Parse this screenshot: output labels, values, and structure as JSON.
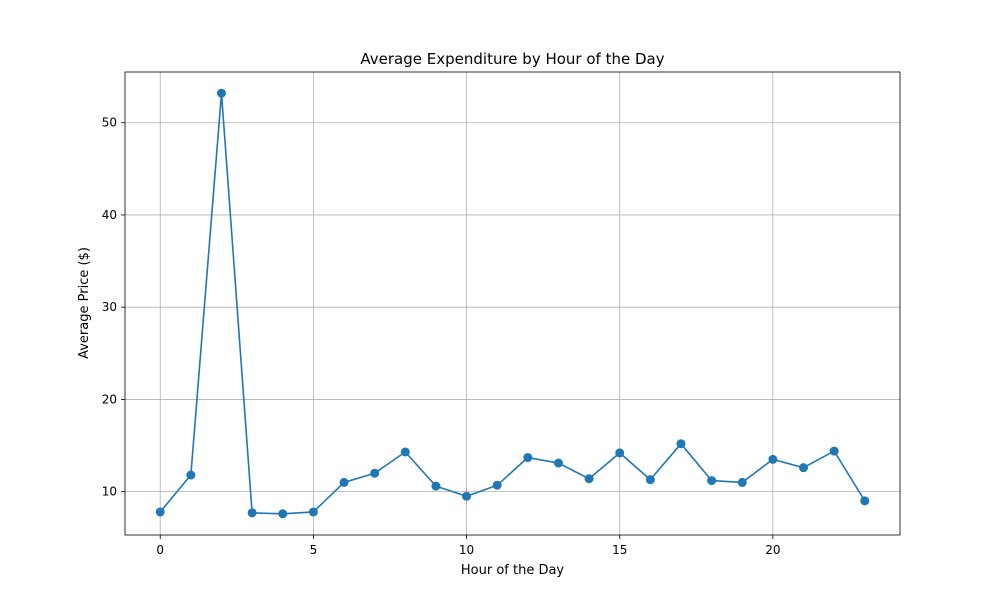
{
  "chart_data": {
    "type": "line",
    "title": "Average Expenditure by Hour of the Day",
    "xlabel": "Hour of the Day",
    "ylabel": "Average Price ($)",
    "xlim": [
      -1.15,
      24.15
    ],
    "ylim": [
      5.3,
      55.5
    ],
    "xticks": [
      0,
      5,
      10,
      15,
      20
    ],
    "yticks": [
      10,
      20,
      30,
      40,
      50
    ],
    "grid": true,
    "legend": "none",
    "series": [
      {
        "color": "#1f77b4",
        "marker": "circle",
        "x": [
          0,
          1,
          2,
          3,
          4,
          5,
          6,
          7,
          8,
          9,
          10,
          11,
          12,
          13,
          14,
          15,
          16,
          17,
          18,
          19,
          20,
          21,
          22,
          23
        ],
        "values": [
          7.8,
          11.8,
          53.2,
          7.7,
          7.6,
          7.8,
          11.0,
          12.0,
          14.3,
          10.6,
          9.5,
          10.7,
          13.7,
          13.1,
          11.4,
          14.2,
          11.3,
          15.2,
          11.2,
          11.0,
          13.5,
          12.6,
          14.4,
          9.0
        ]
      }
    ]
  }
}
